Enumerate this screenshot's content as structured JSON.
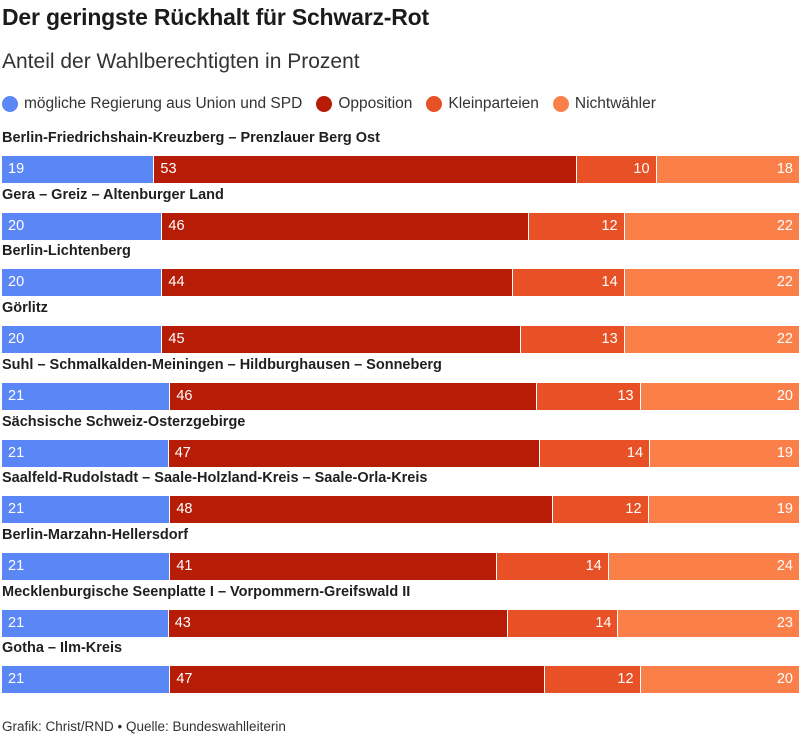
{
  "title": "Der geringste Rückhalt für Schwarz-Rot",
  "subtitle": "Anteil der Wahlberechtigten in Prozent",
  "footer": "Grafik: Christ/RND • Quelle: Bundeswahlleiterin",
  "colors": {
    "regierung": "#5b86f6",
    "opposition": "#b71c07",
    "kleinparteien": "#e85025",
    "nichtwaehler": "#fb7f49"
  },
  "chart_data": {
    "type": "bar",
    "stacked": true,
    "orientation": "horizontal",
    "title": "Der geringste Rückhalt für Schwarz-Rot",
    "subtitle": "Anteil der Wahlberechtigten in Prozent",
    "legend_position": "top",
    "categories": [
      "Berlin-Friedrichshain-Kreuzberg – Prenzlauer Berg Ost",
      "Gera – Greiz – Altenburger Land",
      "Berlin-Lichtenberg",
      "Görlitz",
      "Suhl – Schmalkalden-Meiningen – Hildburghausen – Sonneberg",
      "Sächsische Schweiz-Osterzgebirge",
      "Saalfeld-Rudolstadt – Saale-Holzland-Kreis – Saale-Orla-Kreis",
      "Berlin-Marzahn-Hellersdorf",
      "Mecklenburgische Seenplatte I – Vorpommern-Greifswald II",
      "Gotha – Ilm-Kreis"
    ],
    "series": [
      {
        "name": "mögliche Regierung aus Union und SPD",
        "color": "#5b86f6",
        "values": [
          19,
          20,
          20,
          20,
          21,
          21,
          21,
          21,
          21,
          21
        ]
      },
      {
        "name": "Opposition",
        "color": "#b71c07",
        "values": [
          53,
          46,
          44,
          45,
          46,
          47,
          48,
          41,
          43,
          47
        ]
      },
      {
        "name": "Kleinparteien",
        "color": "#e85025",
        "values": [
          10,
          12,
          14,
          13,
          13,
          14,
          12,
          14,
          14,
          12
        ]
      },
      {
        "name": "Nichtwähler",
        "color": "#fb7f49",
        "values": [
          18,
          22,
          22,
          22,
          20,
          19,
          19,
          24,
          23,
          20
        ]
      }
    ]
  }
}
